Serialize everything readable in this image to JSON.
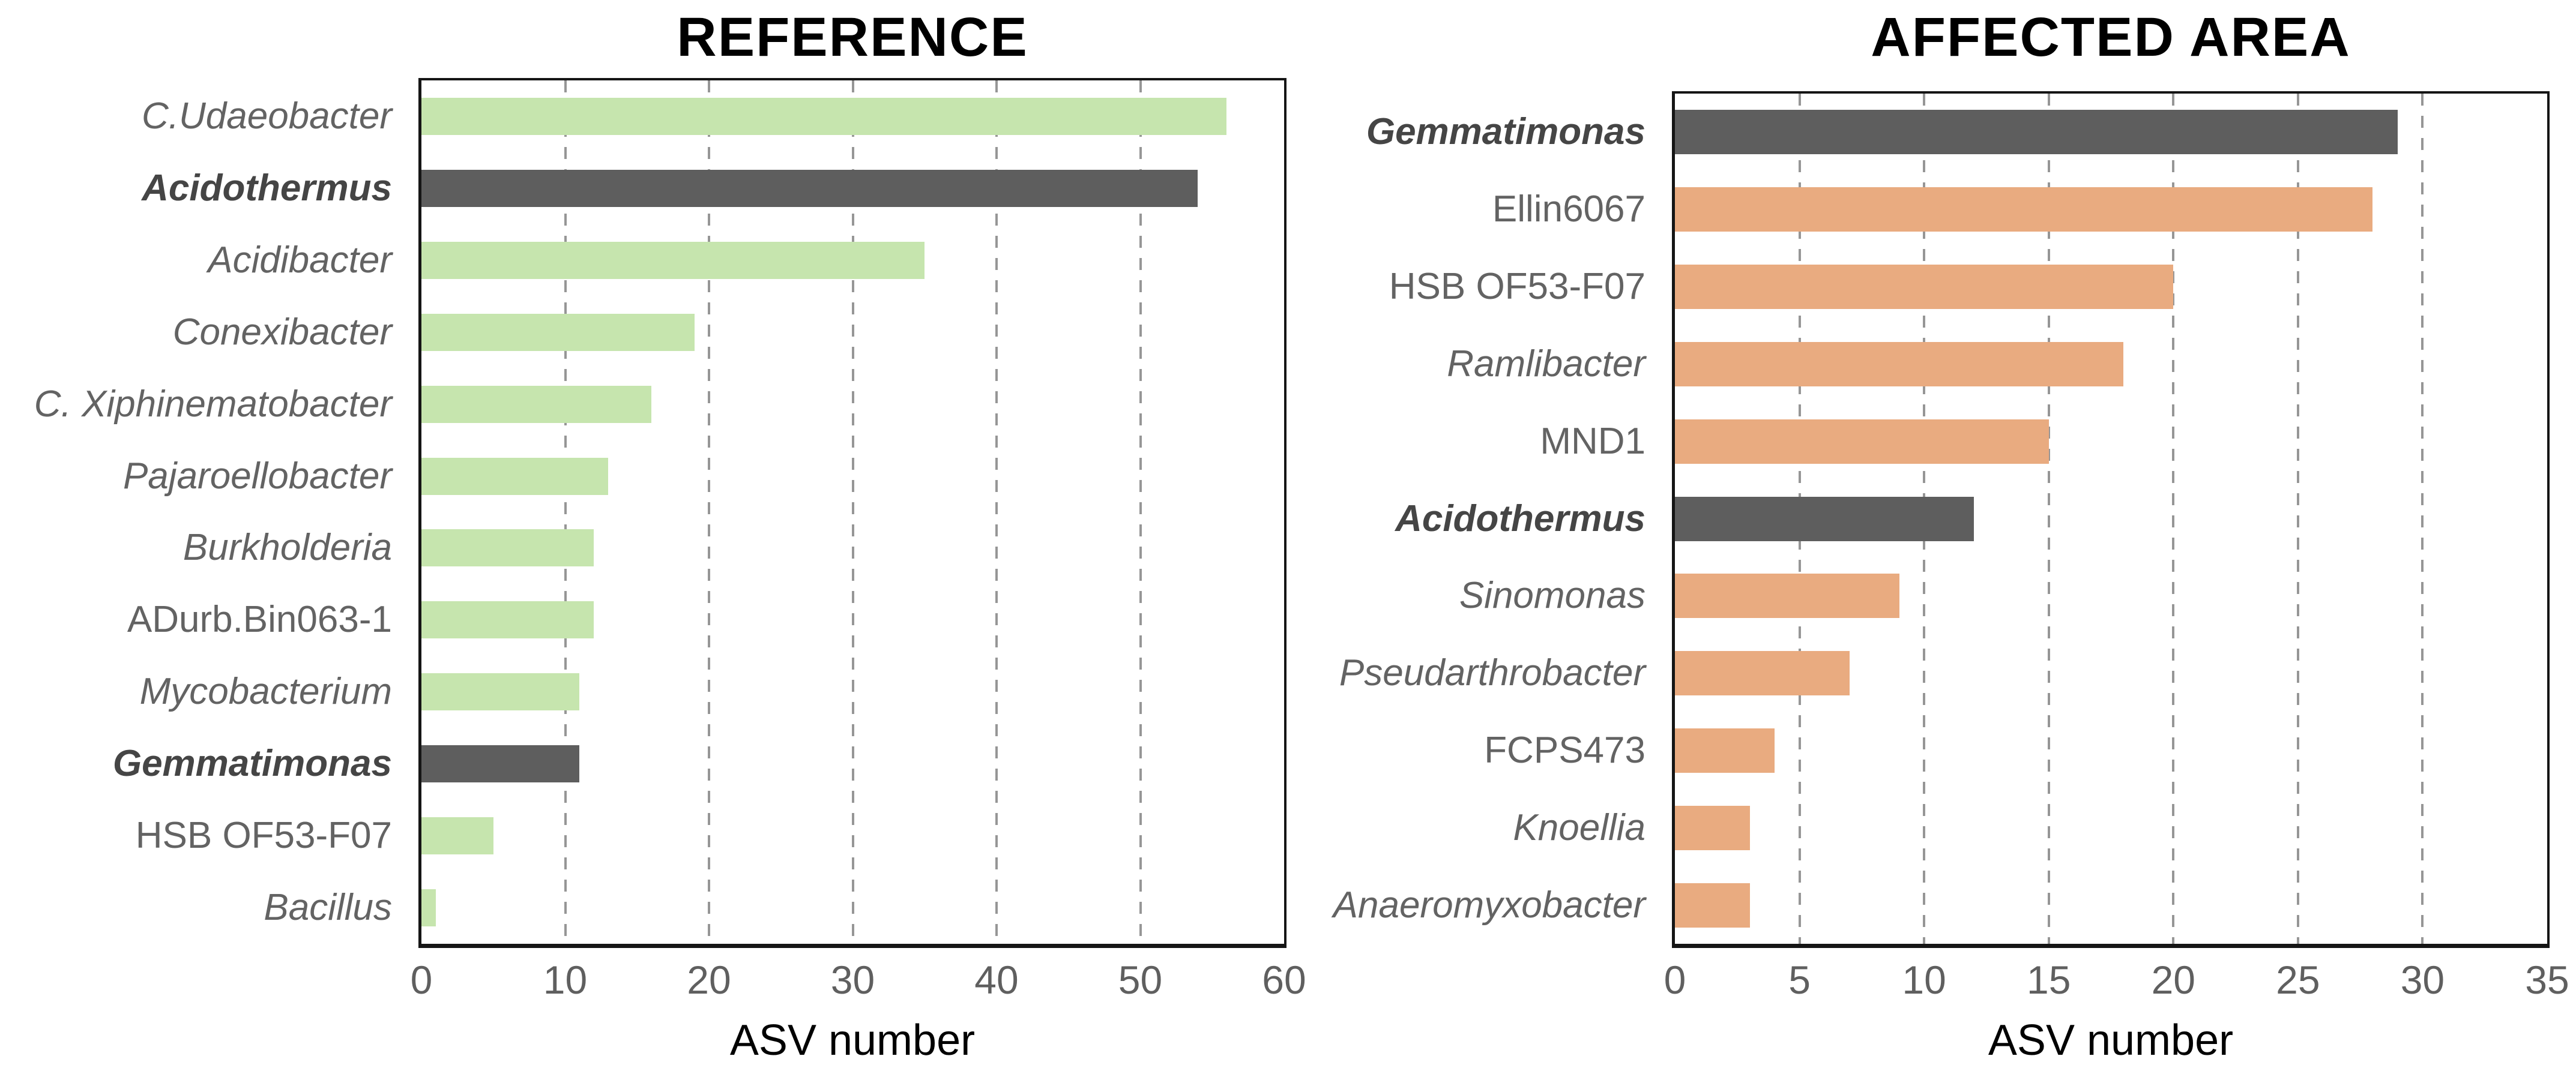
{
  "figure": {
    "background": "#ffffff",
    "colors": {
      "axis_line": "#151515",
      "gridline": "#969696",
      "tick_text": "#5f5f5f",
      "category_text": "#636363",
      "highlight_category_text": "#454545",
      "title_text": "#000000"
    }
  },
  "chart_data": [
    {
      "type": "bar",
      "orientation": "horizontal",
      "title": "REFERENCE",
      "xlabel": "ASV number",
      "xlim": [
        0,
        60
      ],
      "xticks": [
        0,
        10,
        20,
        30,
        40,
        50,
        60
      ],
      "grid": "vertical-dashed",
      "legend": "none",
      "bar_color": "#c6e5ae",
      "highlight_color": "#5e5e5e",
      "categories": [
        "C.Udaeobacter",
        "Acidothermus",
        "Acidibacter",
        "Conexibacter",
        "C. Xiphinematobacter",
        "Pajaroellobacter",
        "Burkholderia",
        "ADurb.Bin063-1",
        "Mycobacterium",
        "Gemmatimonas",
        "HSB OF53-F07",
        "Bacillus"
      ],
      "values": [
        56,
        54,
        35,
        19,
        16,
        13,
        12,
        12,
        11,
        11,
        5,
        1
      ],
      "italic": [
        true,
        true,
        true,
        true,
        true,
        true,
        true,
        false,
        true,
        true,
        false,
        true
      ],
      "highlighted": [
        false,
        true,
        false,
        false,
        false,
        false,
        false,
        false,
        false,
        true,
        false,
        false
      ]
    },
    {
      "type": "bar",
      "orientation": "horizontal",
      "title": "AFFECTED AREA",
      "xlabel": "ASV number",
      "xlim": [
        0,
        35
      ],
      "xticks": [
        0,
        5,
        10,
        15,
        20,
        25,
        30,
        35
      ],
      "grid": "vertical-dashed",
      "legend": "none",
      "bar_color": "#e9ab80",
      "highlight_color": "#5e5e5e",
      "categories": [
        "Gemmatimonas",
        "Ellin6067",
        "HSB OF53-F07",
        "Ramlibacter",
        "MND1",
        "Acidothermus",
        "Sinomonas",
        "Pseudarthrobacter",
        "FCPS473",
        "Knoellia",
        "Anaeromyxobacter"
      ],
      "values": [
        29,
        28,
        20,
        18,
        15,
        12,
        9,
        7,
        4,
        3,
        3
      ],
      "italic": [
        true,
        false,
        false,
        true,
        false,
        true,
        true,
        true,
        false,
        true,
        true
      ],
      "highlighted": [
        true,
        false,
        false,
        false,
        false,
        true,
        false,
        false,
        false,
        false,
        false
      ]
    }
  ]
}
